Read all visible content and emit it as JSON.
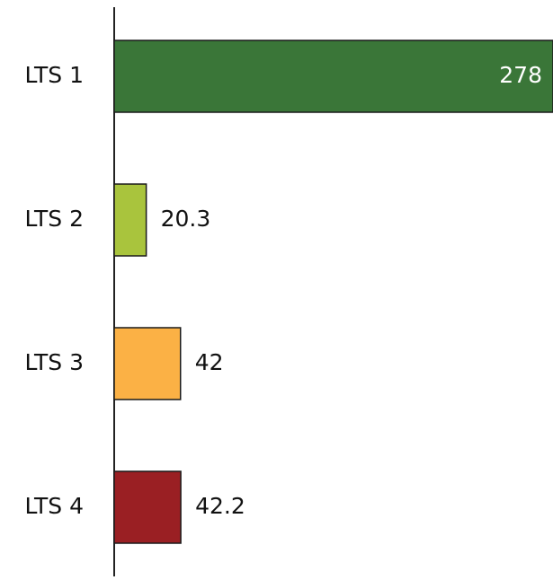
{
  "chart_data": {
    "type": "bar",
    "orientation": "horizontal",
    "categories": [
      "LTS 1",
      "LTS 2",
      "LTS 3",
      "LTS 4"
    ],
    "values": [
      278,
      20.3,
      42,
      42.2
    ],
    "colors": [
      "#3a7638",
      "#a9c43d",
      "#fbb145",
      "#9a1f23"
    ]
  }
}
